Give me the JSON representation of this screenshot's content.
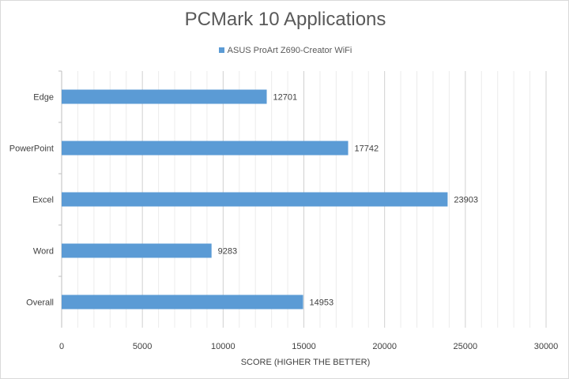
{
  "chart_data": {
    "type": "bar",
    "orientation": "horizontal",
    "title": "PCMark 10 Applications",
    "categories": [
      "Edge",
      "PowerPoint",
      "Excel",
      "Word",
      "Overall"
    ],
    "series": [
      {
        "name": "ASUS ProArt Z690-Creator WiFi",
        "values": [
          12701,
          17742,
          23903,
          9283,
          14953
        ],
        "color": "#5b9bd5"
      }
    ],
    "xlabel": "SCORE (HIGHER THE BETTER)",
    "ylabel": "",
    "xlim": [
      0,
      30000
    ],
    "xticks": [
      0,
      5000,
      10000,
      15000,
      20000,
      25000,
      30000
    ],
    "grid": true,
    "legend": "top"
  }
}
